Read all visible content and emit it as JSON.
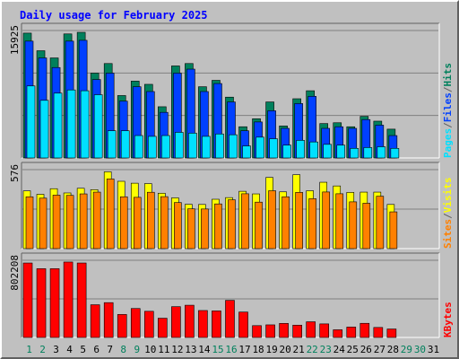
{
  "title": "Daily usage for February 2025",
  "chart_data": [
    {
      "type": "bar",
      "panel": "hits-files-pages",
      "ymax_label": "15925",
      "ylim": [
        0,
        15925
      ],
      "legend": [
        {
          "text": "Pages",
          "color": "#00e0ff"
        },
        {
          "text": "Files",
          "color": "#0040ff"
        },
        {
          "text": "Hits",
          "color": "#00805c"
        }
      ],
      "separator": "/",
      "separator_color": "#606060",
      "series": [
        {
          "name": "Hits",
          "color": "#00805c",
          "values": [
            15600,
            13400,
            12500,
            15500,
            15700,
            10600,
            11800,
            7800,
            9600,
            9200,
            6400,
            11500,
            11800,
            8900,
            9700,
            7600,
            3900,
            4900,
            7000,
            4000,
            7400,
            8400,
            4300,
            4400,
            3900,
            5200,
            4600,
            3600
          ]
        },
        {
          "name": "Files",
          "color": "#0040ff",
          "values": [
            14600,
            12500,
            11300,
            14600,
            14700,
            9800,
            10600,
            7100,
            8900,
            8300,
            5700,
            10600,
            11100,
            8300,
            9300,
            7000,
            3400,
            4500,
            5900,
            3700,
            6800,
            7700,
            3700,
            3900,
            3700,
            4800,
            4100,
            2800
          ]
        },
        {
          "name": "Pages",
          "color": "#00e0ff",
          "values": [
            9000,
            7200,
            8100,
            8500,
            8400,
            7900,
            3400,
            3400,
            2800,
            2700,
            2800,
            3200,
            3100,
            2700,
            3000,
            2900,
            1500,
            2600,
            2400,
            1600,
            2200,
            2000,
            1700,
            1600,
            1200,
            1300,
            1400,
            1200
          ]
        }
      ]
    },
    {
      "type": "bar",
      "panel": "visits-sites",
      "ymax_label": "576",
      "ylim": [
        0,
        576
      ],
      "legend": [
        {
          "text": "Sites",
          "color": "#ff8000"
        },
        {
          "text": "Visits",
          "color": "#ffff00"
        }
      ],
      "separator": "/",
      "separator_color": "#606060",
      "series": [
        {
          "name": "Visits",
          "color": "#ffff00",
          "values": [
            421,
            396,
            437,
            406,
            440,
            430,
            560,
            491,
            477,
            474,
            404,
            370,
            323,
            322,
            360,
            372,
            418,
            399,
            519,
            414,
            539,
            422,
            484,
            457,
            410,
            412,
            412,
            322
          ]
        },
        {
          "name": "Sites",
          "color": "#ff8000",
          "values": [
            378,
            368,
            390,
            388,
            399,
            412,
            508,
            378,
            374,
            411,
            379,
            336,
            290,
            289,
            326,
            356,
            400,
            339,
            422,
            378,
            410,
            364,
            413,
            400,
            341,
            331,
            382,
            268
          ]
        }
      ]
    },
    {
      "type": "bar",
      "panel": "kbytes",
      "ymax_label": "802208",
      "ylim": [
        0,
        802208
      ],
      "legend": [
        {
          "text": "KBytes",
          "color": "#ff0000"
        }
      ],
      "series": [
        {
          "name": "KBytes",
          "color": "#ff0000",
          "values": [
            774000,
            715000,
            715000,
            784000,
            774000,
            340000,
            362000,
            239000,
            301000,
            272000,
            200000,
            320000,
            335000,
            280000,
            276000,
            386000,
            264000,
            123000,
            131000,
            146000,
            128000,
            163000,
            141000,
            80000,
            108000,
            147000,
            104000,
            88000
          ]
        }
      ]
    }
  ],
  "x_days": [
    "1",
    "2",
    "3",
    "4",
    "5",
    "6",
    "7",
    "8",
    "9",
    "10",
    "11",
    "12",
    "13",
    "14",
    "15",
    "16",
    "17",
    "18",
    "19",
    "20",
    "21",
    "22",
    "23",
    "24",
    "25",
    "26",
    "27",
    "28",
    "29",
    "30",
    "31"
  ],
  "weekend_days": [
    "1",
    "2",
    "8",
    "9",
    "15",
    "16",
    "22",
    "23",
    "29",
    "30"
  ],
  "day_color": "#000000",
  "weekend_color": "#00805c"
}
